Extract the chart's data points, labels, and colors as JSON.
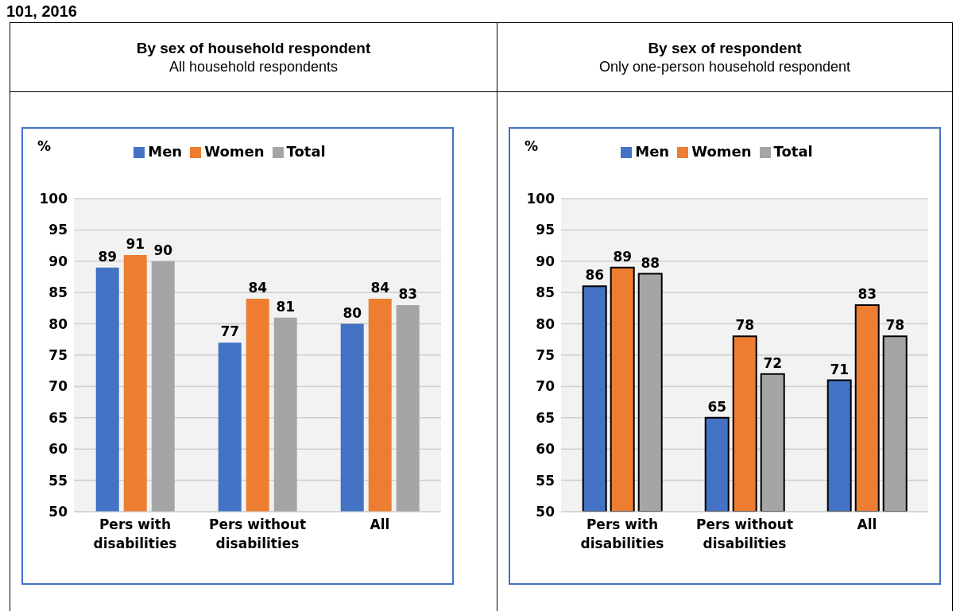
{
  "chart_data": [
    {
      "type": "bar",
      "annotations": [
        "101, 2016"
      ],
      "title": "By sex of household respondent",
      "subtitle": "All household respondents",
      "ylabel": "%",
      "categories": [
        "Pers with disabilities",
        "Pers without disabilities",
        "All"
      ],
      "series": [
        {
          "name": "Men",
          "color": "#4472c4",
          "values": [
            89,
            77,
            80
          ]
        },
        {
          "name": "Women",
          "color": "#ed7d31",
          "values": [
            91,
            84,
            84
          ]
        },
        {
          "name": "Total",
          "color": "#a5a5a5",
          "values": [
            90,
            81,
            83
          ]
        }
      ],
      "ylim": [
        50,
        100
      ],
      "yticks": [
        50,
        55,
        60,
        65,
        70,
        75,
        80,
        85,
        90,
        95,
        100
      ],
      "grid": "y",
      "legend": "top",
      "data_labels": true
    },
    {
      "type": "bar",
      "title": "By sex of respondent",
      "subtitle": "Only one-person household respondent",
      "ylabel": "%",
      "categories": [
        "Pers with disabilities",
        "Pers without disabilities",
        "All"
      ],
      "series": [
        {
          "name": "Men",
          "color": "#4472c4",
          "values": [
            86,
            65,
            71
          ]
        },
        {
          "name": "Women",
          "color": "#ed7d31",
          "values": [
            89,
            78,
            83
          ]
        },
        {
          "name": "Total",
          "color": "#a5a5a5",
          "values": [
            88,
            72,
            78
          ]
        }
      ],
      "ylim": [
        50,
        100
      ],
      "yticks": [
        50,
        55,
        60,
        65,
        70,
        75,
        80,
        85,
        90,
        95,
        100
      ],
      "grid": "y",
      "legend": "top",
      "data_labels": true
    }
  ]
}
